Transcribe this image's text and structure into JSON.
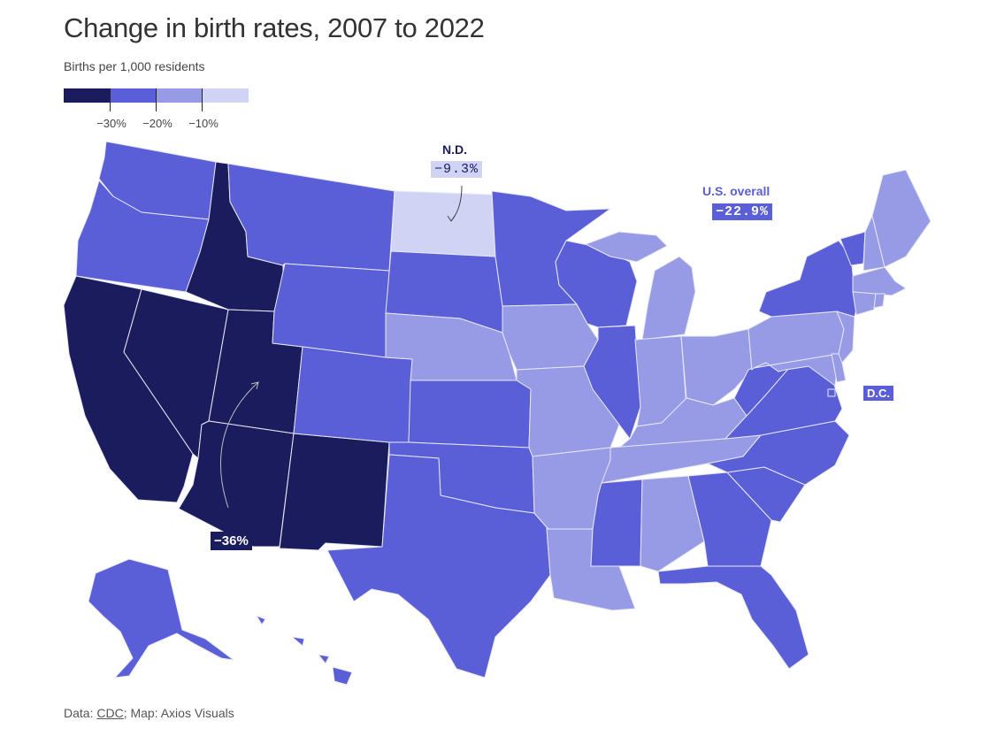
{
  "title": "Change in birth rates, 2007 to 2022",
  "subtitle": "Births per 1,000 residents",
  "colors": {
    "bin_lt_30": "#1b1c5e",
    "bin_30_20": "#5a5fd8",
    "bin_20_10": "#979be6",
    "bin_gt_10": "#d1d3f4"
  },
  "legend": {
    "ticks": [
      "−30%",
      "−20%",
      "−10%"
    ]
  },
  "annotations": {
    "nd_name": "N.D.",
    "nd_value": "−9.3%",
    "us_name": "U.S. overall",
    "us_value": "−22.9%",
    "dc_label": "D.C.",
    "utah_value": "−36%"
  },
  "source": {
    "prefix": "Data: ",
    "link": "CDC",
    "suffix": "; Map: Axios Visuals"
  },
  "states": {
    "WA": "bin_30_20",
    "OR": "bin_30_20",
    "CA": "bin_lt_30",
    "NV": "bin_lt_30",
    "ID": "bin_lt_30",
    "UT": "bin_lt_30",
    "AZ": "bin_lt_30",
    "NM": "bin_lt_30",
    "MT": "bin_30_20",
    "WY": "bin_30_20",
    "CO": "bin_30_20",
    "TX": "bin_30_20",
    "ND": "bin_gt_10",
    "SD": "bin_30_20",
    "NE": "bin_20_10",
    "KS": "bin_30_20",
    "OK": "bin_30_20",
    "MN": "bin_30_20",
    "IA": "bin_20_10",
    "MO": "bin_20_10",
    "AR": "bin_20_10",
    "LA": "bin_20_10",
    "WI": "bin_30_20",
    "IL": "bin_30_20",
    "MI": "bin_20_10",
    "IN": "bin_20_10",
    "OH": "bin_20_10",
    "KY": "bin_20_10",
    "TN": "bin_20_10",
    "MS": "bin_30_20",
    "AL": "bin_20_10",
    "GA": "bin_30_20",
    "FL": "bin_30_20",
    "SC": "bin_30_20",
    "NC": "bin_30_20",
    "VA": "bin_30_20",
    "WV": "bin_30_20",
    "PA": "bin_20_10",
    "NY": "bin_30_20",
    "VT": "bin_30_20",
    "NH": "bin_20_10",
    "ME": "bin_20_10",
    "MA": "bin_20_10",
    "RI": "bin_20_10",
    "CT": "bin_20_10",
    "NJ": "bin_20_10",
    "DE": "bin_20_10",
    "MD": "bin_20_10",
    "DC": "bin_30_20",
    "AK": "bin_30_20",
    "HI": "bin_30_20"
  }
}
